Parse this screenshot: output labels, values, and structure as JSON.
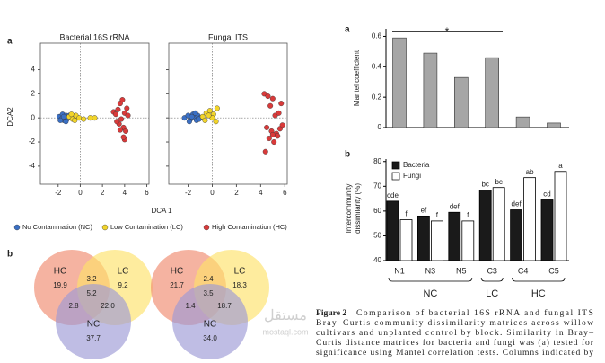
{
  "panel_labels": [
    "a",
    "b",
    "a",
    "b"
  ],
  "scatter": {
    "type": "scatter",
    "x_label": "DCA 1",
    "y_label": "DCA2",
    "xlim": [
      -3.6,
      6.2
    ],
    "ylim": [
      -5.5,
      6.2
    ],
    "xticks": [
      -2,
      0,
      2,
      4,
      6
    ],
    "yticks": [
      -4,
      -2,
      0,
      2,
      4
    ],
    "series": [
      {
        "name": "No Contamination (NC)",
        "color": "#3a6fc4"
      },
      {
        "name": "Low Contamination (LC)",
        "color": "#f2d42a"
      },
      {
        "name": "High Contamination (HC)",
        "color": "#d93a3a"
      }
    ],
    "plots": [
      {
        "title": "Bacterial 16S rRNA",
        "points": [
          {
            "x": [
              -1.9,
              -1.7,
              -1.6,
              -1.5,
              -1.4,
              -1.3,
              -1.2,
              -1.1,
              -1.8,
              -1.5,
              -1.3,
              -1.0
            ],
            "y": [
              0.1,
              -0.1,
              0.3,
              -0.2,
              0.1,
              0.2,
              -0.1,
              0.0,
              -0.2,
              0.1,
              -0.3,
              0.2
            ]
          },
          {
            "x": [
              -1.0,
              -0.7,
              -0.4,
              -0.1,
              0.3,
              0.9,
              1.3,
              -0.8,
              -0.5
            ],
            "y": [
              0.1,
              -0.1,
              0.2,
              0.0,
              -0.1,
              0.0,
              0.0,
              0.3,
              -0.2
            ]
          },
          {
            "x": [
              3.0,
              3.2,
              3.4,
              3.6,
              3.8,
              4.0,
              4.2,
              3.5,
              3.9,
              4.1,
              3.3,
              3.7,
              4.3,
              3.6,
              4.0,
              3.9
            ],
            "y": [
              0.5,
              0.3,
              0.7,
              1.2,
              1.5,
              0.4,
              0.8,
              -0.5,
              -0.8,
              -1.1,
              -0.3,
              -0.1,
              0.2,
              -1.0,
              -1.8,
              -1.6
            ]
          }
        ]
      },
      {
        "title": "Fungal ITS",
        "points": [
          {
            "x": [
              -2.3,
              -2.0,
              -1.8,
              -1.6,
              -1.5,
              -1.3,
              -1.2,
              -1.0,
              -1.9,
              -1.4,
              -1.7,
              -1.1
            ],
            "y": [
              0.0,
              0.2,
              -0.1,
              0.3,
              0.1,
              -0.2,
              0.2,
              0.0,
              -0.3,
              0.4,
              0.1,
              -0.1
            ]
          },
          {
            "x": [
              -0.8,
              -0.5,
              -0.2,
              0.1,
              0.4,
              -0.6,
              0.0,
              -0.3,
              0.3
            ],
            "y": [
              0.1,
              0.4,
              0.6,
              0.3,
              0.8,
              -0.2,
              0.0,
              0.2,
              -0.3
            ]
          },
          {
            "x": [
              4.3,
              4.6,
              4.8,
              5.0,
              5.2,
              5.5,
              5.7,
              4.5,
              4.9,
              5.3,
              5.6,
              4.7,
              5.1,
              5.4,
              5.8,
              4.4,
              5.0
            ],
            "y": [
              2.0,
              1.8,
              1.0,
              1.6,
              0.2,
              0.4,
              1.2,
              -0.8,
              -1.1,
              -1.3,
              -0.9,
              -1.7,
              -2.0,
              -1.5,
              -0.6,
              -2.8,
              -1.4
            ]
          }
        ]
      }
    ]
  },
  "venn": [
    {
      "sets": [
        {
          "label": "HC",
          "value": "19.9"
        },
        {
          "label": "LC",
          "value": "9.2"
        },
        {
          "label": "NC",
          "value": "37.7"
        }
      ],
      "overlaps": {
        "hc_lc": "3.2",
        "all": "5.2",
        "hc_nc": "2.8",
        "lc_nc": "22.0"
      }
    },
    {
      "sets": [
        {
          "label": "HC",
          "value": "21.7"
        },
        {
          "label": "LC",
          "value": "18.3"
        },
        {
          "label": "NC",
          "value": "34.0"
        }
      ],
      "overlaps": {
        "hc_lc": "2.4",
        "all": "3.5",
        "hc_nc": "1.4",
        "lc_nc": "18.7"
      }
    }
  ],
  "mantel": {
    "type": "bar",
    "y_label": "Mantel coefficient",
    "values": [
      0.59,
      0.49,
      0.33,
      0.46,
      0.07,
      0.03
    ],
    "color": "#a6a6a6",
    "ylim": [
      0,
      0.65
    ],
    "yticks": [
      0,
      0.2,
      0.4,
      0.6
    ],
    "annotation": "*"
  },
  "dissimilarity": {
    "type": "bar",
    "y_label_lines": [
      "Intercommunity",
      "dissimilarity (%)"
    ],
    "categories": [
      "N1",
      "N3",
      "N5",
      "C3",
      "C4",
      "C5"
    ],
    "series": [
      {
        "name": "Bacteria",
        "color": "#1a1a1a",
        "values": [
          64,
          58,
          59.5,
          68.5,
          60.5,
          64.5
        ],
        "letters": [
          "cde",
          "ef",
          "def",
          "bc",
          "def",
          "cd"
        ]
      },
      {
        "name": "Fungi",
        "color": "#ffffff",
        "values": [
          56.5,
          56,
          56,
          69.5,
          73.5,
          76
        ],
        "letters": [
          "f",
          "f",
          "f",
          "bc",
          "ab",
          "a"
        ]
      }
    ],
    "ylim": [
      40,
      81
    ],
    "yticks": [
      40,
      50,
      60,
      70,
      80
    ],
    "groups": [
      {
        "label": "NC",
        "size": 3
      },
      {
        "label": "LC",
        "size": 1
      },
      {
        "label": "HC",
        "size": 2
      }
    ]
  },
  "caption": {
    "label": "Figure 2",
    "first_line": "Comparison of bacterial 16S rRNA and fungal ITS",
    "lines": [
      "Bray–Curtis community dissimilarity matrices across willow",
      "cultivars and unplanted control by block. Similarity in Bray–",
      "Curtis distance matrices for bacteria and fungi was (a) tested for",
      "significance using Mantel correlation tests. Columns indicated by"
    ]
  },
  "watermark": [
    "مستقل",
    "mostaql.com"
  ]
}
